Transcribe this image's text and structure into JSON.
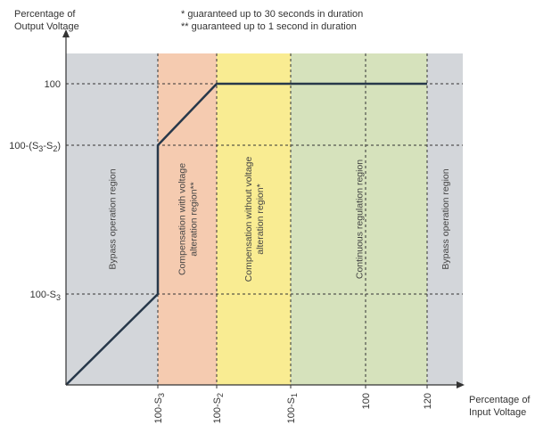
{
  "chart_data": {
    "type": "line",
    "notes": [
      "* guaranteed up to 30 seconds in duration",
      "** guaranteed up to 1 second in duration"
    ],
    "ylabel": [
      "Percentage of",
      "Output Voltage"
    ],
    "xlabel": [
      "Percentage of",
      "Input Voltage"
    ],
    "y_ticks": [
      {
        "key": "s3",
        "label": "100-S",
        "sub": "3",
        "tail": ""
      },
      {
        "key": "s3s2",
        "label": "100-(S",
        "sub": "3",
        "mid": "-S",
        "sub2": "2",
        "tail": ")"
      },
      {
        "key": "full",
        "label": "100",
        "sub": "",
        "tail": ""
      }
    ],
    "x_ticks": [
      {
        "key": "s3",
        "label": "100-S",
        "sub": "3"
      },
      {
        "key": "s2",
        "label": "100-S",
        "sub": "2"
      },
      {
        "key": "s1",
        "label": "100-S",
        "sub": "1"
      },
      {
        "key": "x100",
        "label": "100",
        "sub": ""
      },
      {
        "key": "x120",
        "label": "120",
        "sub": ""
      }
    ],
    "regions": [
      {
        "from": "start",
        "to": "s3",
        "label": [
          "Bypass operation region"
        ],
        "color": "#d3d6da"
      },
      {
        "from": "s3",
        "to": "s2",
        "label": [
          "Compensation with voltage",
          "alteration region**"
        ],
        "color": "#f5cbb0"
      },
      {
        "from": "s2",
        "to": "s1",
        "label": [
          "Compensation without voltage",
          "alteration region*"
        ],
        "color": "#f9ec92"
      },
      {
        "from": "s1",
        "to": "x120",
        "label": [
          "Continuous regulation region"
        ],
        "color": "#d6e2bc"
      },
      {
        "from": "x120",
        "to": "end",
        "label": [
          "Bypass operation region"
        ],
        "color": "#d3d6da"
      }
    ],
    "series": [
      {
        "points": [
          [
            "origin",
            "origin"
          ],
          [
            "s3",
            "s3"
          ],
          [
            "s3",
            "s3s2"
          ],
          [
            "s2",
            "full"
          ],
          [
            "x120",
            "full"
          ]
        ]
      }
    ],
    "curve_color": "#27384a",
    "axis_color": "#333333"
  }
}
